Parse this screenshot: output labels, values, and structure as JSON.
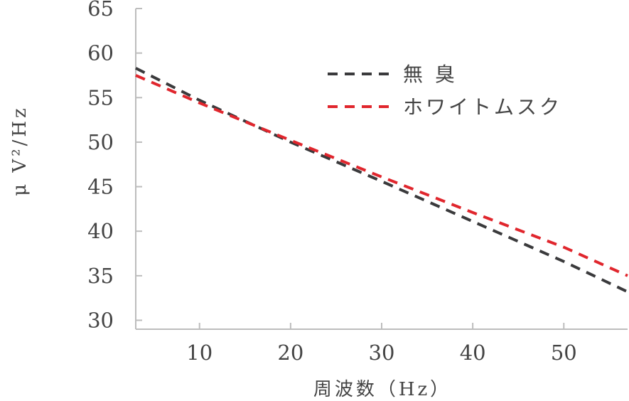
{
  "chart_data": {
    "type": "line",
    "xlabel": "周波数（Hz）",
    "ylabel": "μ V²/Hz",
    "xlim": [
      3,
      57
    ],
    "ylim": [
      29,
      65
    ],
    "xticks": [
      10,
      20,
      30,
      40,
      50
    ],
    "yticks": [
      30,
      35,
      40,
      45,
      50,
      55,
      60,
      65
    ],
    "grid": false,
    "legend_position": "top-right",
    "series": [
      {
        "name": "無 臭",
        "color": "#3a3a3c",
        "dash": "dashed",
        "x": [
          3,
          10,
          20,
          30,
          40,
          50,
          57
        ],
        "y": [
          58.3,
          54.7,
          50.0,
          45.6,
          41.1,
          36.6,
          33.2
        ]
      },
      {
        "name": "ホワイトムスク",
        "color": "#e0262d",
        "dash": "dashed",
        "x": [
          3,
          10,
          20,
          30,
          40,
          50,
          57
        ],
        "y": [
          57.5,
          54.4,
          50.2,
          46.1,
          42.1,
          38.2,
          35.0
        ]
      }
    ]
  }
}
